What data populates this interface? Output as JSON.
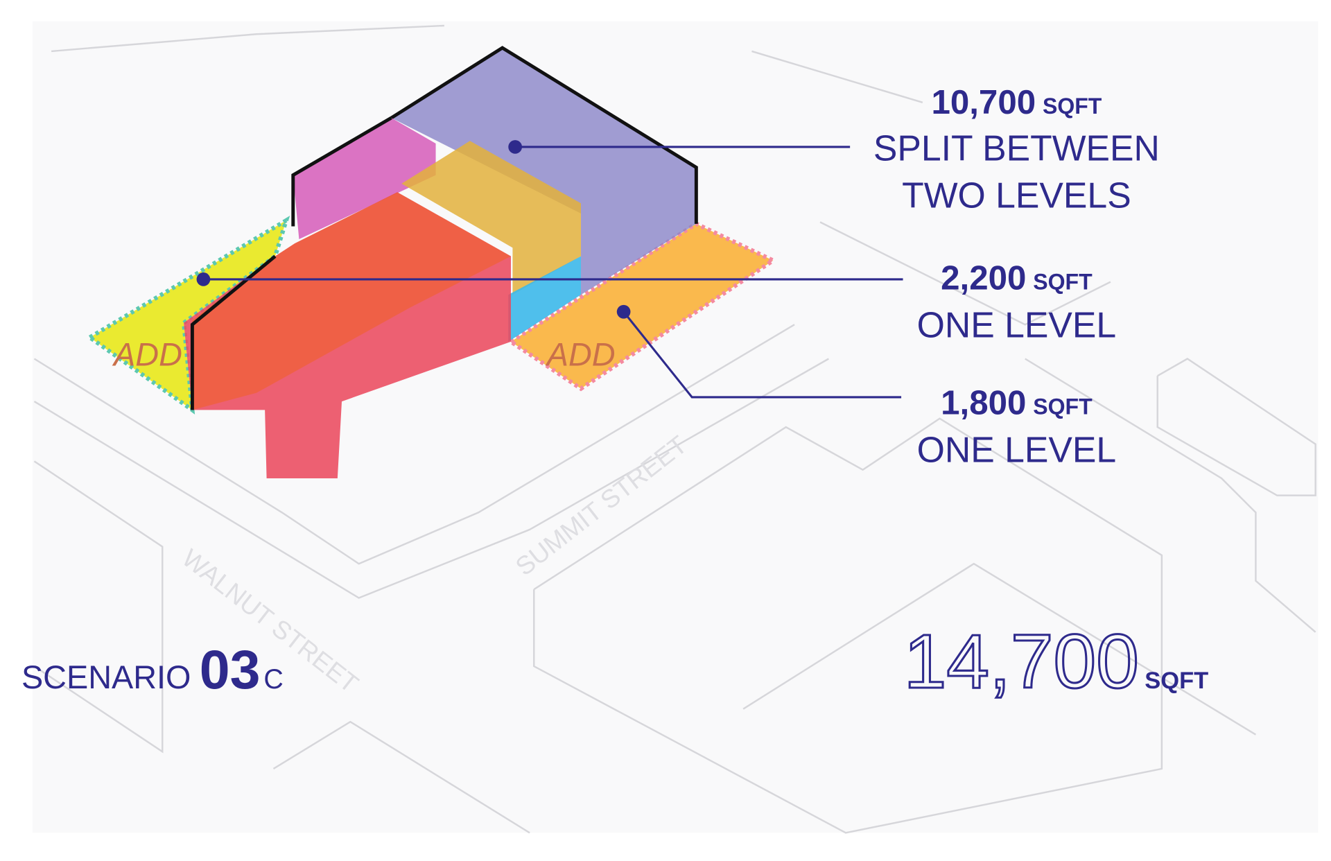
{
  "callouts": [
    {
      "amount": "10,700",
      "unit": "SQFT",
      "description": [
        "SPLIT BETWEEN",
        "TWO LEVELS"
      ]
    },
    {
      "amount": "2,200",
      "unit": "SQFT",
      "description": [
        "ONE LEVEL"
      ]
    },
    {
      "amount": "1,800",
      "unit": "SQFT",
      "description": [
        "ONE LEVEL"
      ]
    }
  ],
  "additions": [
    "ADD",
    "ADD"
  ],
  "streets": [
    "WALNUT STREET",
    "SUMMIT STREET"
  ],
  "scenario": {
    "label": "SCENARIO",
    "number": "03",
    "suffix": "C"
  },
  "total": {
    "amount": "14,700",
    "unit": "SQFT"
  }
}
